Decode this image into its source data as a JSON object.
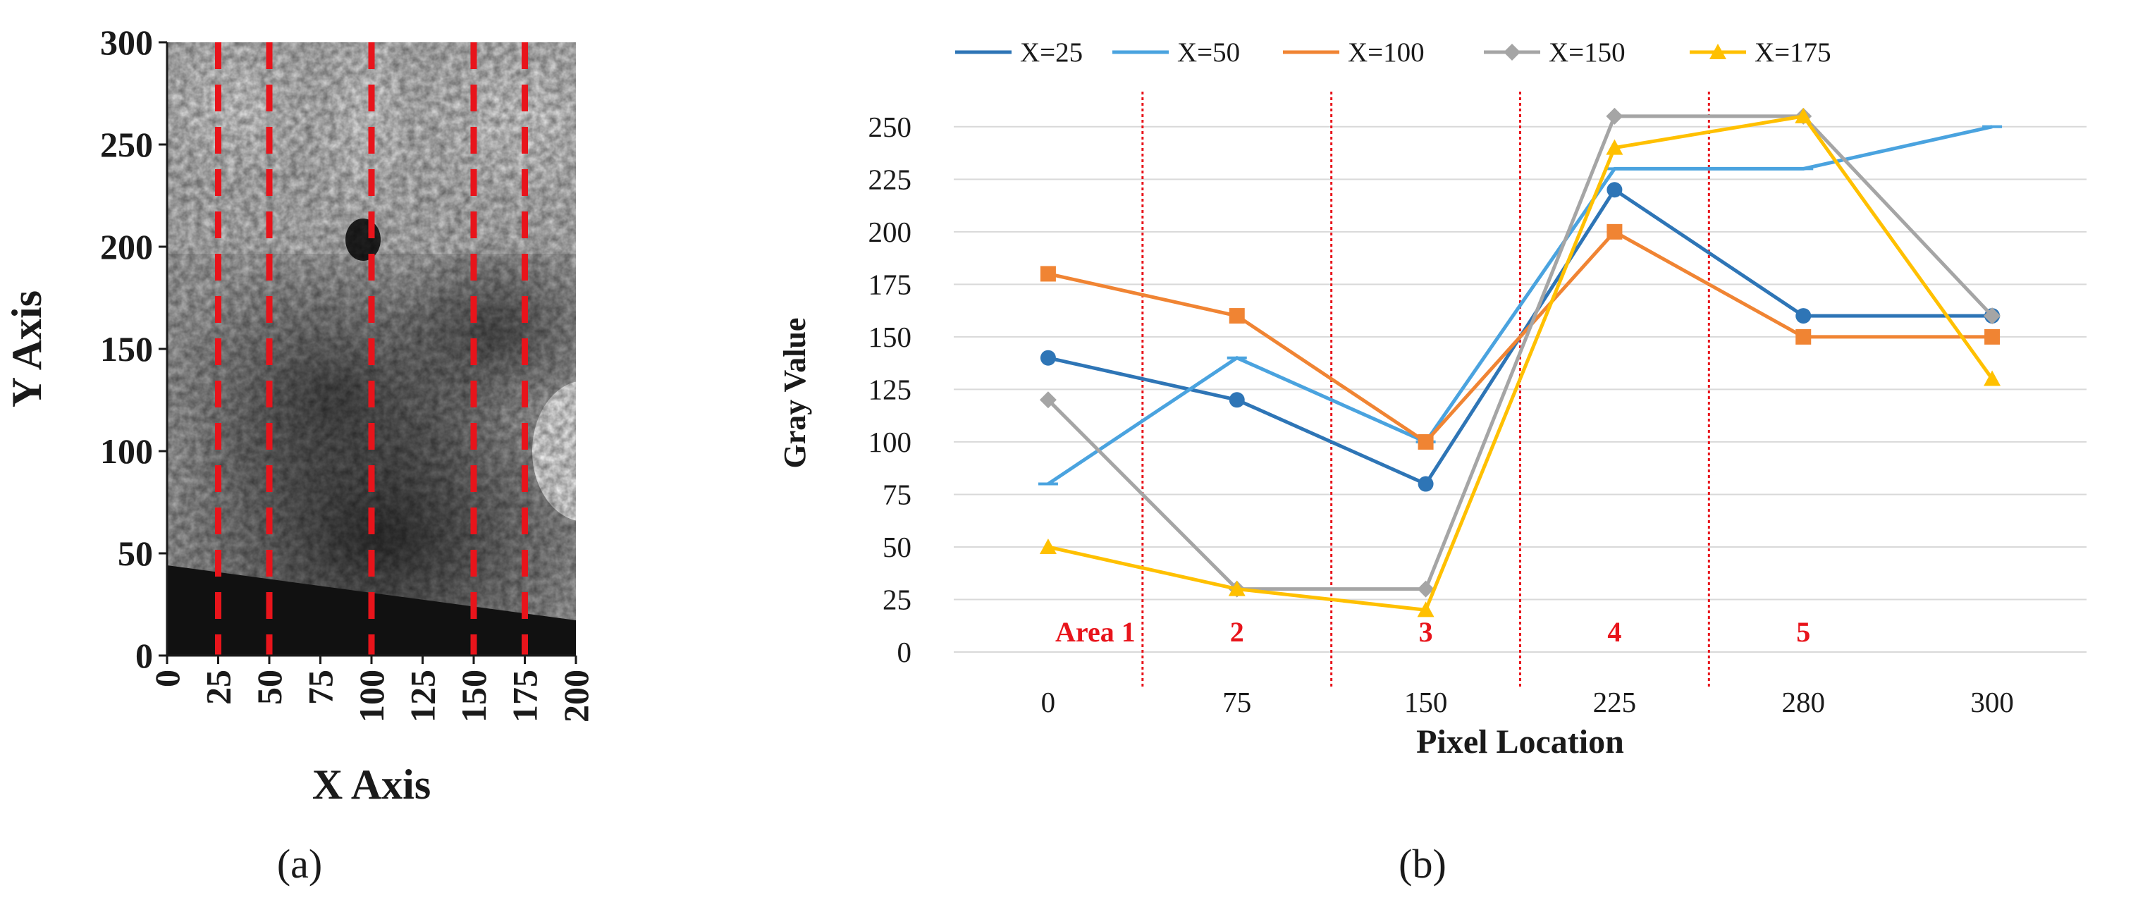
{
  "panel_a": {
    "label": "(a)",
    "xlabel": "X Axis",
    "ylabel": "Y Axis",
    "x_ticks": [
      "0",
      "25",
      "50",
      "75",
      "100",
      "125",
      "150",
      "175",
      "200"
    ],
    "y_ticks": [
      "0",
      "50",
      "100",
      "150",
      "200",
      "250",
      "300"
    ],
    "xlim": [
      0,
      200
    ],
    "ylim": [
      0,
      300
    ],
    "scan_lines_x": [
      25,
      50,
      100,
      150,
      175
    ],
    "scan_line_color": "#e8141b"
  },
  "panel_b": {
    "label": "(b)"
  },
  "chart_data": {
    "type": "line",
    "title": "",
    "xlabel": "Pixel Location",
    "ylabel": "Gray Value",
    "x": [
      "0",
      "75",
      "150",
      "225",
      "280",
      "300"
    ],
    "y_ticks": [
      "0",
      "25",
      "50",
      "75",
      "100",
      "125",
      "150",
      "175",
      "200",
      "225",
      "250"
    ],
    "ylim": [
      0,
      260
    ],
    "grid": true,
    "legend_position": "top",
    "series": [
      {
        "name": "X=25",
        "color": "#2e75b6",
        "marker": "circle",
        "values": [
          140,
          120,
          80,
          220,
          160,
          160
        ]
      },
      {
        "name": "X=50",
        "color": "#4aa3df",
        "marker": "dash",
        "values": [
          80,
          140,
          100,
          230,
          230,
          250
        ]
      },
      {
        "name": "X=100",
        "color": "#f08433",
        "marker": "square",
        "values": [
          180,
          160,
          100,
          200,
          150,
          150
        ]
      },
      {
        "name": "X=150",
        "color": "#a5a5a5",
        "marker": "diamond",
        "values": [
          120,
          30,
          30,
          255,
          255,
          160
        ]
      },
      {
        "name": "X=175",
        "color": "#ffc000",
        "marker": "triangle",
        "values": [
          50,
          30,
          20,
          240,
          255,
          130
        ]
      }
    ],
    "divider_lines_x": [
      "75",
      "150",
      "225",
      "280"
    ],
    "divider_color": "#e8141b",
    "areas": [
      {
        "label": "Area 1",
        "from": "0",
        "to": "75"
      },
      {
        "label": "2",
        "from": "75",
        "to": "150"
      },
      {
        "label": "3",
        "from": "150",
        "to": "225"
      },
      {
        "label": "4",
        "from": "225",
        "to": "280"
      },
      {
        "label": "5",
        "from": "280",
        "to": "300"
      }
    ]
  }
}
